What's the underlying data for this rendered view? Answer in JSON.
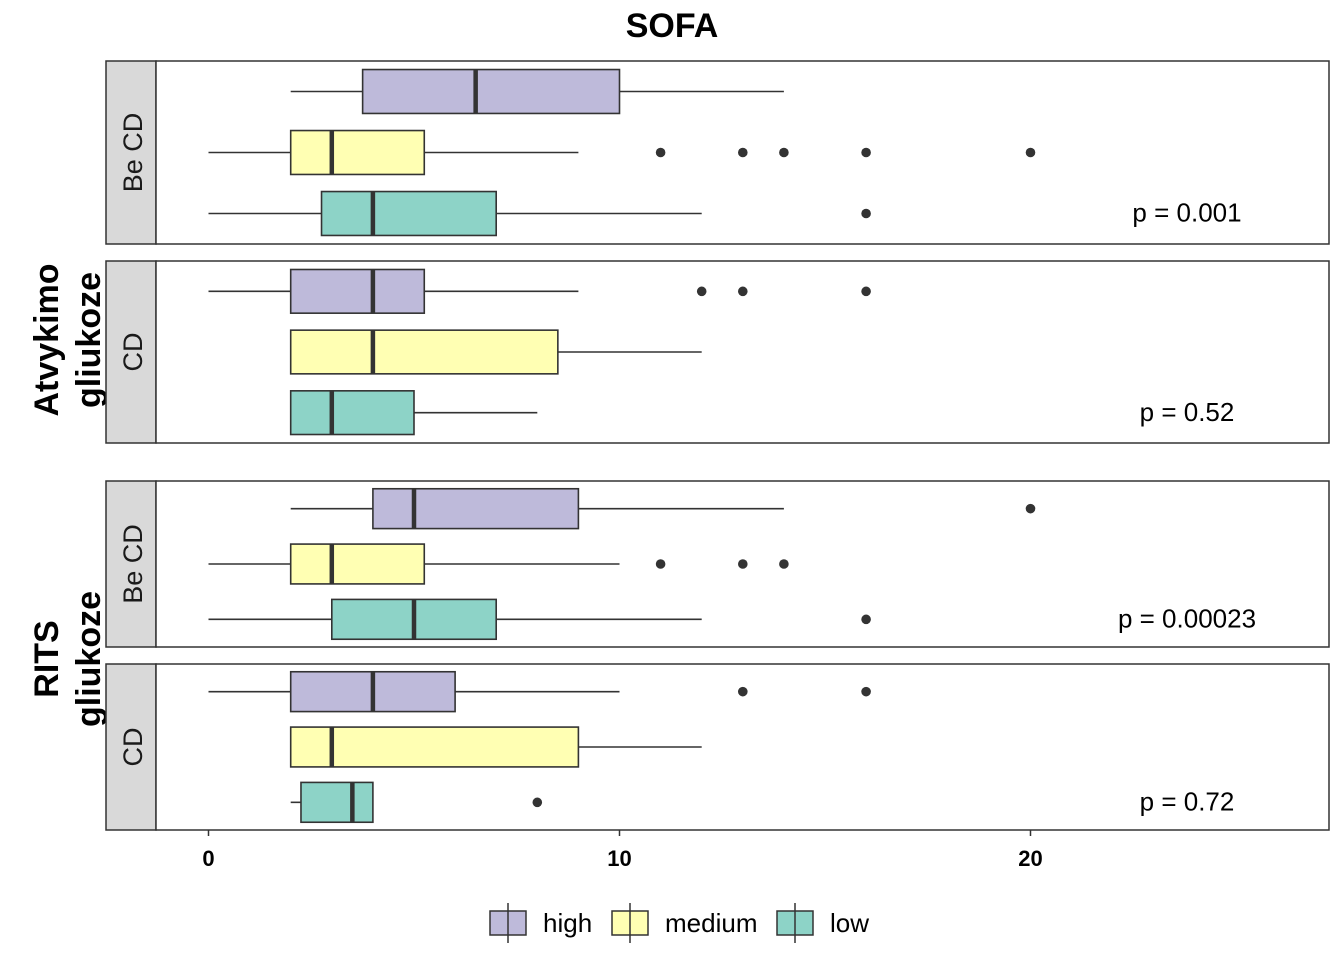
{
  "chart_data": {
    "type": "boxplot",
    "orientation": "horizontal",
    "title": "SOFA",
    "x_ticks": [
      0,
      10,
      20
    ],
    "xlim": [
      -2.5,
      27.3
    ],
    "legend": {
      "position": "bottom",
      "entries": [
        {
          "key": "high",
          "label": "high",
          "color": "#BEBADA"
        },
        {
          "key": "medium",
          "label": "medium",
          "color": "#FFFFB3"
        },
        {
          "key": "low",
          "label": "low",
          "color": "#8DD3C7"
        }
      ]
    },
    "groups": [
      {
        "label": "Atvykimo\ngliukoze",
        "lines": [
          "Atvykimo",
          "gliukoze"
        ],
        "panels": [
          {
            "strip": "Be CD",
            "p_value": "p = 0.001",
            "boxes": [
              {
                "series": "high",
                "whisker_low": 2,
                "q1": 3.75,
                "median": 6.5,
                "q3": 10,
                "whisker_high": 14,
                "outliers": []
              },
              {
                "series": "medium",
                "whisker_low": 0,
                "q1": 2,
                "median": 3,
                "q3": 5.25,
                "whisker_high": 9,
                "outliers": [
                  11,
                  13,
                  14,
                  16,
                  20
                ]
              },
              {
                "series": "low",
                "whisker_low": 0,
                "q1": 2.75,
                "median": 4,
                "q3": 7,
                "whisker_high": 12,
                "outliers": [
                  16
                ]
              }
            ]
          },
          {
            "strip": "CD",
            "p_value": "p = 0.52",
            "boxes": [
              {
                "series": "high",
                "whisker_low": 0,
                "q1": 2,
                "median": 4,
                "q3": 5.25,
                "whisker_high": 9,
                "outliers": [
                  12,
                  13,
                  16
                ]
              },
              {
                "series": "medium",
                "whisker_low": 2,
                "q1": 2,
                "median": 4,
                "q3": 8.5,
                "whisker_high": 12,
                "outliers": []
              },
              {
                "series": "low",
                "whisker_low": 2,
                "q1": 2,
                "median": 3,
                "q3": 5,
                "whisker_high": 8,
                "outliers": []
              }
            ]
          }
        ]
      },
      {
        "label": "RITS\ngliukoze",
        "lines": [
          "RITS",
          "gliukoze"
        ],
        "panels": [
          {
            "strip": "Be CD",
            "p_value": "p = 0.00023",
            "boxes": [
              {
                "series": "high",
                "whisker_low": 2,
                "q1": 4,
                "median": 5,
                "q3": 9,
                "whisker_high": 14,
                "outliers": [
                  20
                ]
              },
              {
                "series": "medium",
                "whisker_low": 0,
                "q1": 2,
                "median": 3,
                "q3": 5.25,
                "whisker_high": 10,
                "outliers": [
                  11,
                  13,
                  14
                ]
              },
              {
                "series": "low",
                "whisker_low": 0,
                "q1": 3,
                "median": 5,
                "q3": 7,
                "whisker_high": 12,
                "outliers": [
                  16
                ]
              }
            ]
          },
          {
            "strip": "CD",
            "p_value": "p = 0.72",
            "boxes": [
              {
                "series": "high",
                "whisker_low": 0,
                "q1": 2,
                "median": 4,
                "q3": 6,
                "whisker_high": 10,
                "outliers": [
                  13,
                  16
                ]
              },
              {
                "series": "medium",
                "whisker_low": 2,
                "q1": 2,
                "median": 3,
                "q3": 9,
                "whisker_high": 12,
                "outliers": []
              },
              {
                "series": "low",
                "whisker_low": 2,
                "q1": 2.25,
                "median": 3.5,
                "q3": 4,
                "whisker_high": 4,
                "outliers": [
                  8
                ]
              }
            ]
          }
        ]
      }
    ]
  }
}
